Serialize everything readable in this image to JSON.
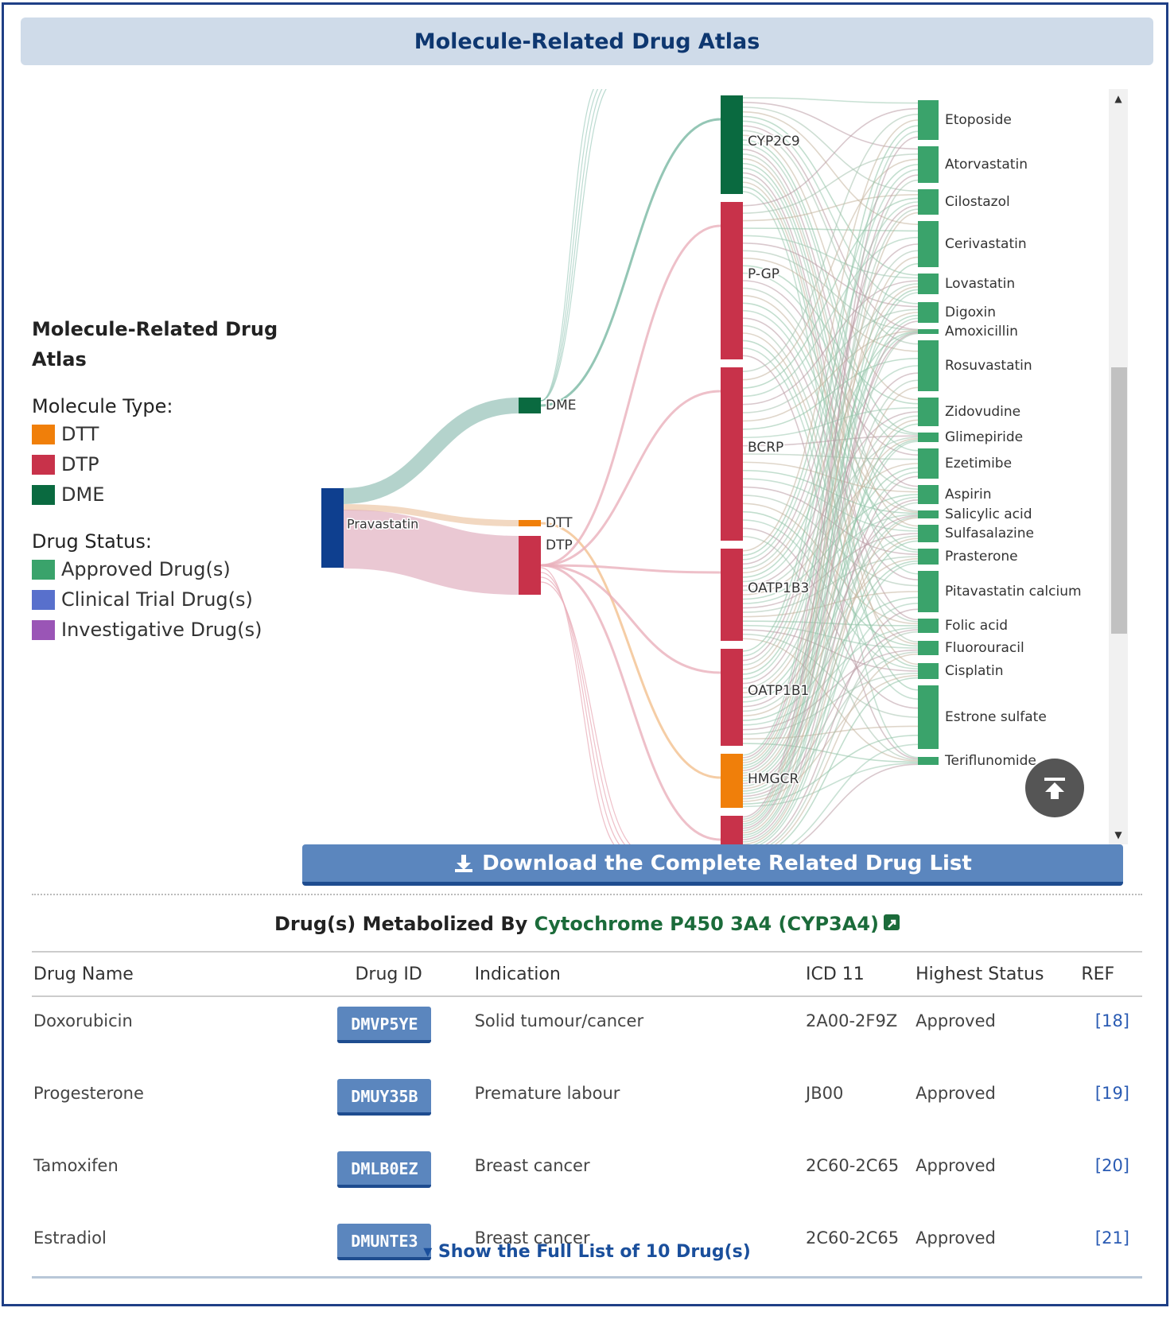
{
  "title": "Molecule-Related Drug Atlas",
  "legend": {
    "heading": "Molecule-Related Drug Atlas",
    "molecule_type_label": "Molecule Type:",
    "molecule_types": [
      {
        "label": "DTT",
        "color": "#f07f0a"
      },
      {
        "label": "DTP",
        "color": "#c8324a"
      },
      {
        "label": "DME",
        "color": "#0a6a40"
      }
    ],
    "drug_status_label": "Drug Status:",
    "drug_statuses": [
      {
        "label": "Approved Drug(s)",
        "color": "#3aa36b"
      },
      {
        "label": "Clinical Trial Drug(s)",
        "color": "#5870cc"
      },
      {
        "label": "Investigative Drug(s)",
        "color": "#9a55b6"
      }
    ]
  },
  "sankey": {
    "source": {
      "label": "Pravastatin",
      "color": "#0e3f8f"
    },
    "types": [
      {
        "label": "DME",
        "color": "#0a6a40"
      },
      {
        "label": "DTT",
        "color": "#f07f0a"
      },
      {
        "label": "DTP",
        "color": "#c8324a"
      }
    ],
    "molecules": [
      {
        "label": "CYP2C9",
        "color": "#0a6a40"
      },
      {
        "label": "P-GP",
        "color": "#c8324a"
      },
      {
        "label": "BCRP",
        "color": "#c8324a"
      },
      {
        "label": "OATP1B3",
        "color": "#c8324a"
      },
      {
        "label": "OATP1B1",
        "color": "#c8324a"
      },
      {
        "label": "HMGCR",
        "color": "#f07f0a"
      },
      {
        "label": "",
        "color": "#c8324a"
      }
    ],
    "drugs": [
      "Etoposide",
      "Atorvastatin",
      "Cilostazol",
      "Cerivastatin",
      "Lovastatin",
      "Digoxin",
      "Amoxicillin",
      "Rosuvastatin",
      "Zidovudine",
      "Glimepiride",
      "Ezetimibe",
      "Aspirin",
      "Salicylic acid",
      "Sulfasalazine",
      "Prasterone",
      "Pitavastatin calcium",
      "Folic acid",
      "Fluorouracil",
      "Cisplatin",
      "Estrone sulfate",
      "Teriflunomide"
    ],
    "drug_color": "#3aa36b"
  },
  "download_label": "Download the Complete Related Drug List",
  "table": {
    "title_prefix": "Drug(s) Metabolized By ",
    "title_link": "Cytochrome P450 3A4 (CYP3A4)",
    "headers": {
      "name": "Drug Name",
      "id": "Drug ID",
      "indication": "Indication",
      "icd": "ICD 11",
      "status": "Highest Status",
      "ref": "REF"
    },
    "rows": [
      {
        "name": "Doxorubicin",
        "id": "DMVP5YE",
        "indication": "Solid tumour/cancer",
        "icd": "2A00-2F9Z",
        "status": "Approved",
        "ref": "[18]"
      },
      {
        "name": "Progesterone",
        "id": "DMUY35B",
        "indication": "Premature labour",
        "icd": "JB00",
        "status": "Approved",
        "ref": "[19]"
      },
      {
        "name": "Tamoxifen",
        "id": "DMLB0EZ",
        "indication": "Breast cancer",
        "icd": "2C60-2C65",
        "status": "Approved",
        "ref": "[20]"
      },
      {
        "name": "Estradiol",
        "id": "DMUNTE3",
        "indication": "Breast cancer",
        "icd": "2C60-2C65",
        "status": "Approved",
        "ref": "[21]"
      }
    ]
  },
  "show_full_label": "Show the Full List of 10 Drug(s)"
}
